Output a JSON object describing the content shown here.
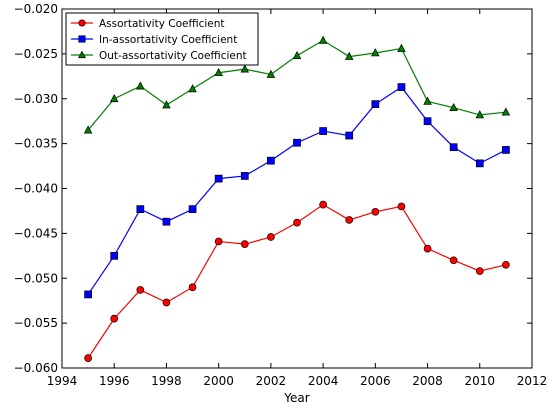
{
  "chart_data": {
    "type": "line",
    "xlabel": "Year",
    "ylabel": "",
    "xlim": [
      1994,
      2012
    ],
    "ylim": [
      -0.06,
      -0.02
    ],
    "xticks": [
      1994,
      1996,
      1998,
      2000,
      2002,
      2004,
      2006,
      2008,
      2010,
      2012
    ],
    "yticks": [
      -0.06,
      -0.055,
      -0.05,
      -0.045,
      -0.04,
      -0.035,
      -0.03,
      -0.025,
      -0.02
    ],
    "xtick_labels": [
      "1994",
      "1996",
      "1998",
      "2000",
      "2002",
      "2004",
      "2006",
      "2008",
      "2010",
      "2012"
    ],
    "ytick_labels": [
      "−0.060",
      "−0.055",
      "−0.050",
      "−0.045",
      "−0.040",
      "−0.035",
      "−0.030",
      "−0.025",
      "−0.020"
    ],
    "grid": false,
    "legend_position": "top-left",
    "x": [
      1995,
      1996,
      1997,
      1998,
      1999,
      2000,
      2001,
      2002,
      2003,
      2004,
      2005,
      2006,
      2007,
      2008,
      2009,
      2010,
      2011
    ],
    "series": [
      {
        "name": "Assortativity Coefficient",
        "color": "#ff0000",
        "marker": "circle",
        "values": [
          -0.0589,
          -0.0545,
          -0.0513,
          -0.0527,
          -0.051,
          -0.0459,
          -0.0462,
          -0.0454,
          -0.0438,
          -0.0418,
          -0.0435,
          -0.0426,
          -0.042,
          -0.0467,
          -0.048,
          -0.0492,
          -0.0485
        ]
      },
      {
        "name": "In-assortativity Coefficient",
        "color": "#0000ff",
        "marker": "square",
        "values": [
          -0.0518,
          -0.0475,
          -0.0423,
          -0.0437,
          -0.0423,
          -0.0389,
          -0.0386,
          -0.0369,
          -0.0349,
          -0.0336,
          -0.0341,
          -0.0306,
          -0.0287,
          -0.0325,
          -0.0354,
          -0.0372,
          -0.0357
        ]
      },
      {
        "name": "Out-assortativity Coefficient",
        "color": "#008000",
        "marker": "triangle",
        "values": [
          -0.0335,
          -0.03,
          -0.0286,
          -0.0307,
          -0.0289,
          -0.0271,
          -0.0267,
          -0.0273,
          -0.0252,
          -0.0235,
          -0.0253,
          -0.0249,
          -0.0244,
          -0.0303,
          -0.031,
          -0.0318,
          -0.0315
        ]
      }
    ]
  }
}
